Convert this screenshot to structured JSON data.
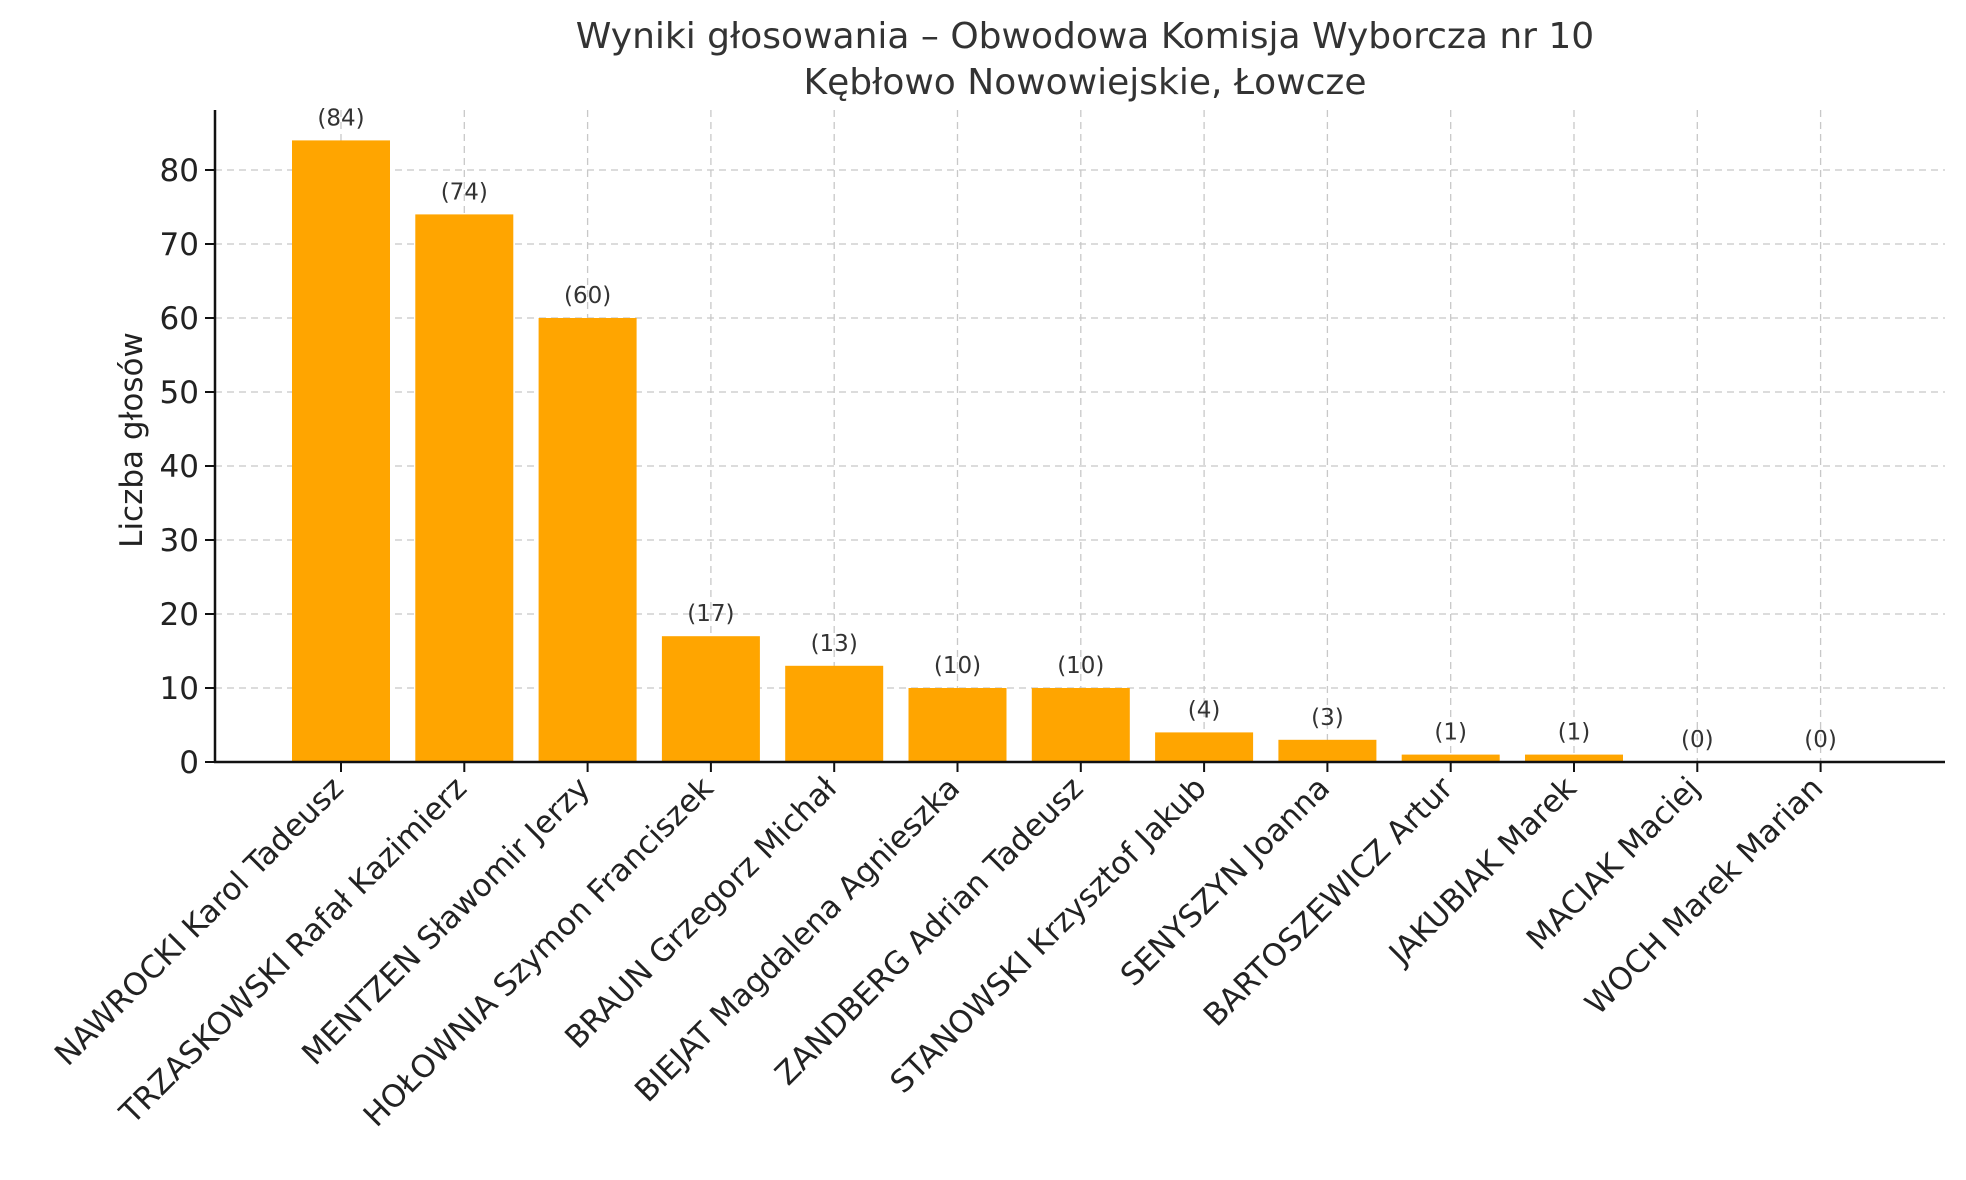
{
  "chart_data": {
    "type": "bar",
    "title_line1": "Wyniki głosowania – Obwodowa Komisja Wyborcza nr 10",
    "title_line2": "Kębłowo Nowowiejskie, Łowcze",
    "xlabel": "",
    "ylabel": "Liczba głosów",
    "ylim": [
      0,
      88
    ],
    "yticks": [
      0,
      10,
      20,
      30,
      40,
      50,
      60,
      70,
      80
    ],
    "grid": true,
    "bar_color": "#FFA500",
    "categories": [
      "NAWROCKI Karol Tadeusz",
      "TRZASKOWSKI Rafał Kazimierz",
      "MENTZEN Sławomir Jerzy",
      "HOŁOWNIA Szymon Franciszek",
      "BRAUN Grzegorz Michał",
      "BIEJAT Magdalena Agnieszka",
      "ZANDBERG Adrian Tadeusz",
      "STANOWSKI Krzysztof Jakub",
      "SENYSZYN Joanna",
      "BARTOSZEWICZ Artur",
      "JAKUBIAK Marek",
      "MACIAK Maciej",
      "WOCH Marek Marian"
    ],
    "values": [
      84,
      74,
      60,
      17,
      13,
      10,
      10,
      4,
      3,
      1,
      1,
      0,
      0
    ],
    "data_labels": [
      "(84)",
      "(74)",
      "(60)",
      "(17)",
      "(13)",
      "(10)",
      "(10)",
      "(4)",
      "(3)",
      "(1)",
      "(1)",
      "(0)",
      "(0)"
    ]
  }
}
